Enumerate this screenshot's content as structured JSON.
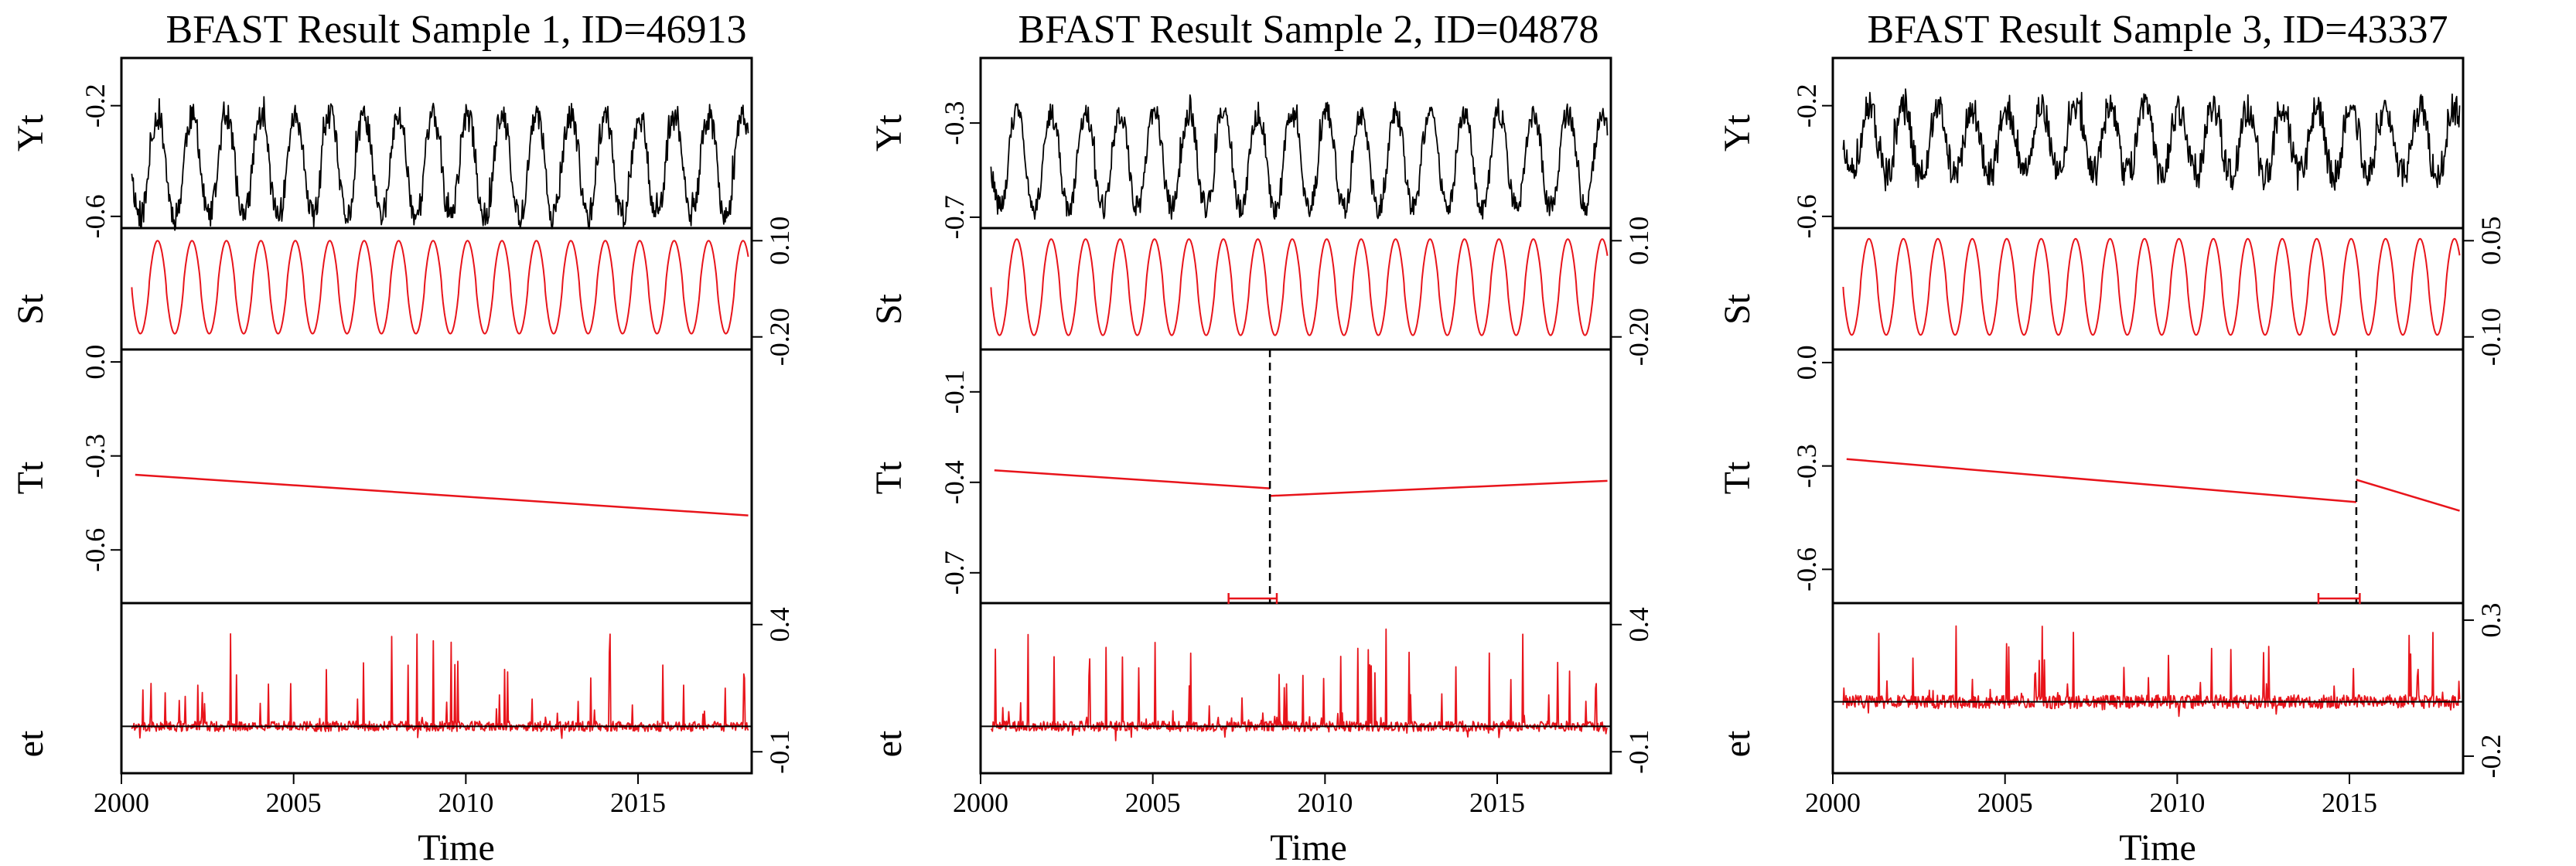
{
  "chart_data": [
    {
      "type": "line",
      "title": "BFAST Result Sample 1, ID=46913",
      "xlabel": "Time",
      "x_ticks": [
        "2000",
        "2005",
        "2010",
        "2015"
      ],
      "xlim": [
        2000,
        2018.3
      ],
      "panels": [
        {
          "name": "Yt",
          "side": "left",
          "ticks": [
            "-0.6",
            "-0.2"
          ],
          "ylim": [
            -0.62,
            -0.05
          ],
          "color": "#000000",
          "signal": {
            "kind": "raw",
            "base": -0.42,
            "amp": 0.18,
            "noise": 0.05,
            "spikes": 0.09,
            "seed": 11
          }
        },
        {
          "name": "St",
          "side": "right",
          "ticks": [
            "-0.20",
            "0.10"
          ],
          "ylim": [
            -0.22,
            0.12
          ],
          "color": "#e8141b",
          "signal": {
            "kind": "season",
            "amp": 0.145,
            "offset": -0.045
          }
        },
        {
          "name": "Tt",
          "side": "left",
          "ticks": [
            "-0.6",
            "-0.3",
            "0.0"
          ],
          "ylim": [
            -0.75,
            0.02
          ],
          "color": "#e8141b",
          "signal": {
            "kind": "trend",
            "segments": [
              {
                "x0": 2000.4,
                "y0": -0.36,
                "x1": 2018.2,
                "y1": -0.49
              }
            ]
          }
        },
        {
          "name": "et",
          "side": "right",
          "ticks": [
            "-0.1",
            "0.4"
          ],
          "ylim": [
            -0.16,
            0.46
          ],
          "color": "#e8141b",
          "signal": {
            "kind": "resid",
            "noise": 0.02,
            "spikes": 0.38,
            "rate": 0.07,
            "seed": 21
          },
          "zero_line": 0.0
        }
      ],
      "breakpoint": null
    },
    {
      "type": "line",
      "title": "BFAST Result Sample 2, ID=04878",
      "xlabel": "Time",
      "x_ticks": [
        "2000",
        "2005",
        "2010",
        "2015"
      ],
      "xlim": [
        2000,
        2018.3
      ],
      "panels": [
        {
          "name": "Yt",
          "side": "left",
          "ticks": [
            "-0.7",
            "-0.3"
          ],
          "ylim": [
            -0.72,
            -0.05
          ],
          "color": "#000000",
          "signal": {
            "kind": "raw",
            "base": -0.46,
            "amp": 0.2,
            "noise": 0.05,
            "spikes": 0.1,
            "seed": 31
          }
        },
        {
          "name": "St",
          "side": "right",
          "ticks": [
            "-0.20",
            "0.10"
          ],
          "ylim": [
            -0.22,
            0.12
          ],
          "color": "#e8141b",
          "signal": {
            "kind": "season",
            "amp": 0.15,
            "offset": -0.045
          }
        },
        {
          "name": "Tt",
          "side": "left",
          "ticks": [
            "-0.7",
            "-0.4",
            "-0.1"
          ],
          "ylim": [
            -0.78,
            0.02
          ],
          "color": "#e8141b",
          "signal": {
            "kind": "trend",
            "segments": [
              {
                "x0": 2000.4,
                "y0": -0.36,
                "x1": 2008.4,
                "y1": -0.42
              },
              {
                "x0": 2008.4,
                "y0": -0.445,
                "x1": 2018.2,
                "y1": -0.395
              }
            ]
          }
        },
        {
          "name": "et",
          "side": "right",
          "ticks": [
            "-0.1",
            "0.4"
          ],
          "ylim": [
            -0.16,
            0.46
          ],
          "color": "#e8141b",
          "signal": {
            "kind": "resid",
            "noise": 0.02,
            "spikes": 0.38,
            "rate": 0.08,
            "seed": 41
          },
          "zero_line": 0.0
        }
      ],
      "breakpoint": {
        "x": 2008.4,
        "ci": [
          2007.2,
          2008.6
        ]
      }
    },
    {
      "type": "line",
      "title": "BFAST Result Sample 3, ID=43337",
      "xlabel": "Time",
      "x_ticks": [
        "2000",
        "2005",
        "2010",
        "2015"
      ],
      "xlim": [
        2000,
        2018.3
      ],
      "panels": [
        {
          "name": "Yt",
          "side": "left",
          "ticks": [
            "-0.6",
            "-0.2"
          ],
          "ylim": [
            -0.62,
            -0.05
          ],
          "color": "#000000",
          "signal": {
            "kind": "raw",
            "base": -0.33,
            "amp": 0.12,
            "noise": 0.06,
            "spikes": 0.08,
            "seed": 51
          }
        },
        {
          "name": "St",
          "side": "right",
          "ticks": [
            "-0.10",
            "0.05"
          ],
          "ylim": [
            -0.11,
            0.06
          ],
          "color": "#e8141b",
          "signal": {
            "kind": "season",
            "amp": 0.075,
            "offset": -0.022
          }
        },
        {
          "name": "Tt",
          "side": "left",
          "ticks": [
            "-0.6",
            "-0.3",
            "0.0"
          ],
          "ylim": [
            -0.68,
            0.02
          ],
          "color": "#e8141b",
          "signal": {
            "kind": "trend",
            "segments": [
              {
                "x0": 2000.4,
                "y0": -0.28,
                "x1": 2015.2,
                "y1": -0.405
              },
              {
                "x0": 2015.2,
                "y0": -0.34,
                "x1": 2018.2,
                "y1": -0.43
              }
            ]
          }
        },
        {
          "name": "et",
          "side": "right",
          "ticks": [
            "-0.2",
            "0.3"
          ],
          "ylim": [
            -0.24,
            0.34
          ],
          "color": "#e8141b",
          "signal": {
            "kind": "resid",
            "noise": 0.025,
            "spikes": 0.3,
            "rate": 0.06,
            "seed": 61
          },
          "zero_line": 0.0
        }
      ],
      "breakpoint": {
        "x": 2015.2,
        "ci": [
          2014.1,
          2015.3
        ]
      }
    }
  ]
}
